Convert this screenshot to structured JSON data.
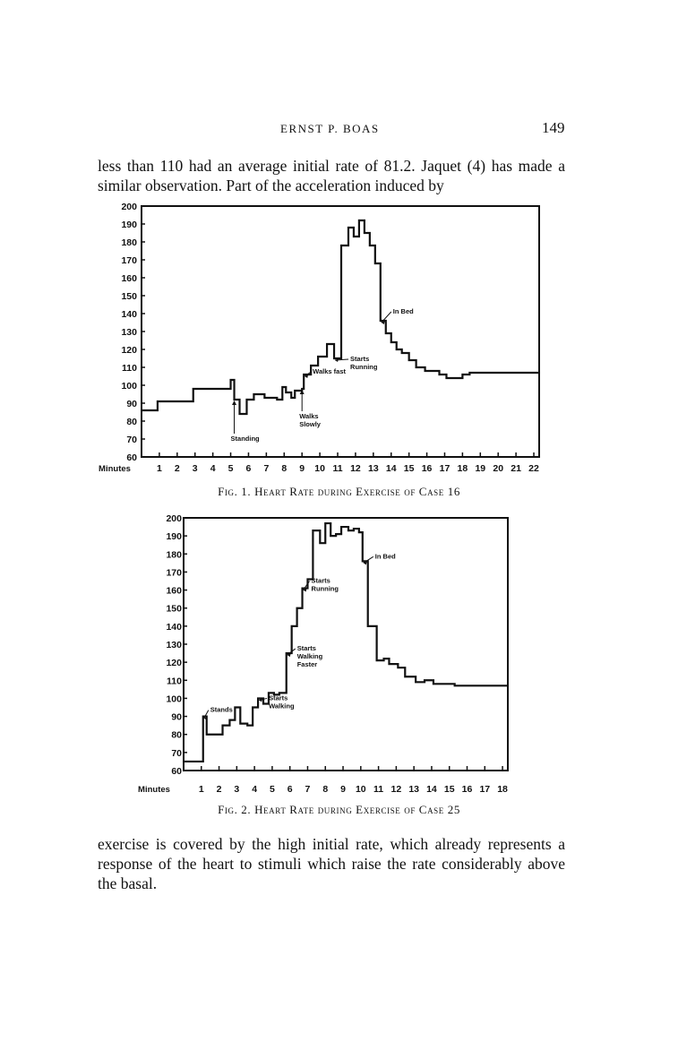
{
  "header": {
    "author": "ERNST P. BOAS",
    "page_number": "149"
  },
  "body_text": {
    "para1": "less than 110 had an average initial rate of 81.2. Jaquet (4) has made a similar observation. Part of the acceleration induced by",
    "para2": "exercise is covered by the high initial rate, which already represents a response of the heart to stimuli which raise the rate considerably above the basal."
  },
  "captions": {
    "fig1": "Fig. 1. Heart Rate during Exercise of Case 16",
    "fig2": "Fig. 2. Heart Rate during Exercise of Case 25"
  },
  "chart_data": [
    {
      "type": "line",
      "step": true,
      "title": "",
      "xlabel": "Minutes",
      "ylabel": "",
      "x_ticks": [
        1,
        2,
        3,
        4,
        5,
        6,
        7,
        8,
        9,
        10,
        11,
        12,
        13,
        14,
        15,
        16,
        17,
        18,
        19,
        20,
        21,
        22
      ],
      "y_ticks": [
        60,
        70,
        80,
        90,
        100,
        110,
        120,
        130,
        140,
        150,
        160,
        170,
        180,
        190,
        200
      ],
      "xlim": [
        0,
        22.3
      ],
      "ylim": [
        60,
        200
      ],
      "grid": false,
      "series": [
        {
          "x": [
            0,
            0.9,
            2.9,
            5,
            5.2,
            5.5,
            5.9,
            6.3,
            6.9,
            7.6,
            7.9,
            8.1,
            8.4,
            8.6,
            9,
            9.1,
            9.5,
            9.9,
            10.4,
            10.8,
            11.2,
            11.6,
            11.9,
            12.2,
            12.5,
            12.8,
            13.1,
            13.4,
            13.7,
            14,
            14.3,
            14.6,
            15,
            15.4,
            15.9,
            16.3,
            16.7,
            17.1,
            17.5,
            18,
            18.4,
            19.3,
            22.3
          ],
          "y": [
            86,
            91,
            98,
            103,
            92,
            84,
            92,
            95,
            93,
            92,
            99,
            96,
            93,
            97,
            98,
            106,
            111,
            116,
            123,
            115,
            178,
            188,
            183,
            192,
            185,
            178,
            168,
            136,
            129,
            124,
            120,
            118,
            114,
            110,
            108,
            108,
            106,
            104,
            104,
            106,
            107,
            107,
            107
          ]
        }
      ],
      "annotations": [
        {
          "text": "Standing",
          "x": 5.2
        },
        {
          "text": "Walks Slowly",
          "x": 9
        },
        {
          "text": "Walks fast",
          "x": 9.1
        },
        {
          "text": "Starts Running",
          "x": 10.8
        },
        {
          "text": "In Bed",
          "x": 13.4
        }
      ]
    },
    {
      "type": "line",
      "step": true,
      "title": "",
      "xlabel": "Minutes",
      "ylabel": "",
      "x_ticks": [
        1,
        2,
        3,
        4,
        5,
        6,
        7,
        8,
        9,
        10,
        11,
        12,
        13,
        14,
        15,
        16,
        17,
        18
      ],
      "y_ticks": [
        60,
        70,
        80,
        90,
        100,
        110,
        120,
        130,
        140,
        150,
        160,
        170,
        180,
        190,
        200
      ],
      "xlim": [
        0,
        18.3
      ],
      "ylim": [
        60,
        200
      ],
      "grid": false,
      "series": [
        {
          "x": [
            0,
            1.1,
            1.3,
            2.2,
            2.6,
            2.9,
            3.2,
            3.6,
            3.9,
            4.2,
            4.5,
            4.8,
            5.1,
            5.4,
            5.8,
            6.1,
            6.4,
            6.7,
            7,
            7.3,
            7.7,
            8,
            8.3,
            8.6,
            8.9,
            9.3,
            9.6,
            9.9,
            10.1,
            10.4,
            10.9,
            11.3,
            11.6,
            12.1,
            12.5,
            13.1,
            13.6,
            14.1,
            15.3,
            18.3
          ],
          "y": [
            65,
            90,
            80,
            85,
            88,
            95,
            86,
            85,
            95,
            100,
            97,
            103,
            102,
            103,
            125,
            140,
            150,
            161,
            166,
            193,
            186,
            197,
            190,
            191,
            195,
            193,
            194,
            192,
            176,
            140,
            121,
            122,
            119,
            117,
            112,
            109,
            110,
            108,
            107,
            107
          ]
        }
      ],
      "annotations": [
        {
          "text": "Stands",
          "x": 1.1
        },
        {
          "text": "Starts Walking",
          "x": 4.2
        },
        {
          "text": "Starts Walking Faster",
          "x": 5.8
        },
        {
          "text": "Starts Running",
          "x": 6.7
        },
        {
          "text": "In Bed",
          "x": 10.1
        }
      ]
    }
  ]
}
